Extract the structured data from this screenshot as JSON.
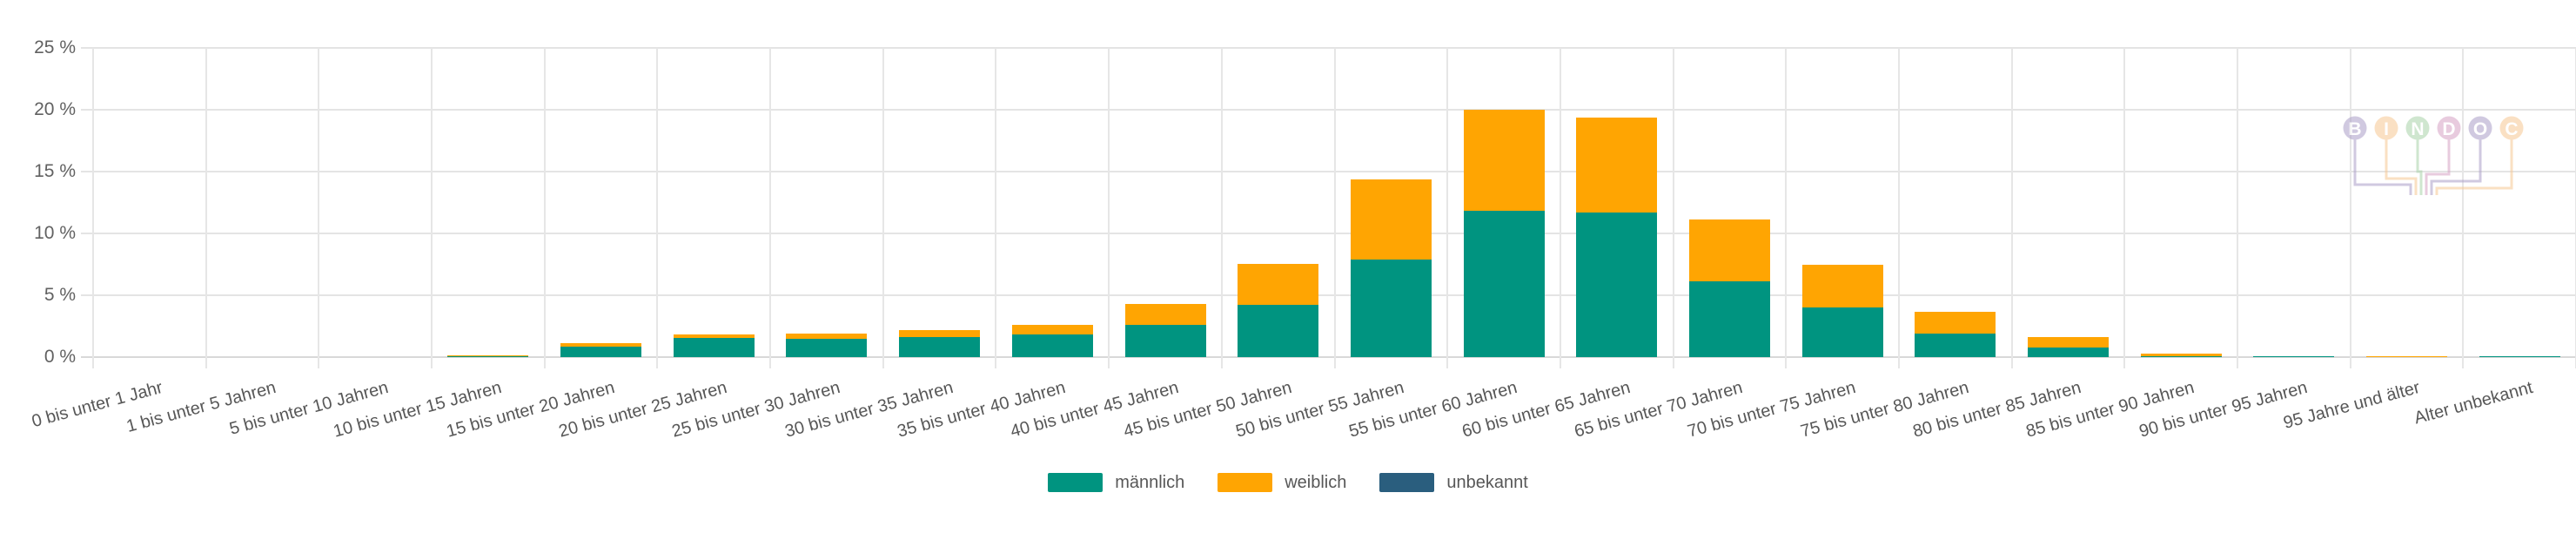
{
  "page": {
    "background": "#ffffff"
  },
  "watermark": {
    "name": "BINDOC",
    "letters": [
      {
        "char": "B",
        "color": "#ab9ec7"
      },
      {
        "char": "I",
        "color": "#f7c793"
      },
      {
        "char": "N",
        "color": "#a9d2a9"
      },
      {
        "char": "D",
        "color": "#d7a2c4"
      },
      {
        "char": "O",
        "color": "#ab9ec7"
      },
      {
        "char": "C",
        "color": "#f7c793"
      }
    ]
  },
  "chart_data": {
    "type": "bar",
    "stacked": true,
    "title": "",
    "xlabel": "",
    "ylabel": "",
    "unit": "%",
    "grid": true,
    "legend_position": "bottom",
    "x_label_rotation": -15,
    "ylim": [
      0,
      25
    ],
    "y_ticks": [
      {
        "value": 0,
        "label": "0 %"
      },
      {
        "value": 5,
        "label": "5 %"
      },
      {
        "value": 10,
        "label": "10 %"
      },
      {
        "value": 15,
        "label": "15 %"
      },
      {
        "value": 20,
        "label": "20 %"
      },
      {
        "value": 25,
        "label": "25 %"
      }
    ],
    "categories": [
      "0 bis unter 1 Jahr",
      "1 bis unter 5 Jahren",
      "5 bis unter 10 Jahren",
      "10 bis unter 15 Jahren",
      "15 bis unter 20 Jahren",
      "20 bis unter 25 Jahren",
      "25 bis unter 30 Jahren",
      "30 bis unter 35 Jahren",
      "35 bis unter 40 Jahren",
      "40 bis unter 45 Jahren",
      "45 bis unter 50 Jahren",
      "50 bis unter 55 Jahren",
      "55 bis unter 60 Jahren",
      "60 bis unter 65 Jahren",
      "65 bis unter 70 Jahren",
      "70 bis unter 75 Jahren",
      "75 bis unter 80 Jahren",
      "80 bis unter 85 Jahren",
      "85 bis unter 90 Jahren",
      "90 bis unter 95 Jahren",
      "95 Jahre und älter",
      "Alter unbekannt"
    ],
    "series": [
      {
        "name": "männlich",
        "color": "#009480",
        "values": [
          0,
          0,
          0,
          0.05,
          0.85,
          1.55,
          1.5,
          1.6,
          1.8,
          2.6,
          4.2,
          7.9,
          11.8,
          11.7,
          6.1,
          4.0,
          1.9,
          0.8,
          0.1,
          0.1,
          0,
          0.1
        ]
      },
      {
        "name": "weiblich",
        "color": "#FFA502",
        "values": [
          0,
          0,
          0,
          0.05,
          0.3,
          0.25,
          0.4,
          0.55,
          0.8,
          1.7,
          3.3,
          6.5,
          8.2,
          7.7,
          5.0,
          3.45,
          1.75,
          0.85,
          0.2,
          0,
          0.1,
          0
        ]
      },
      {
        "name": "unbekannt",
        "color": "#2A5E7E",
        "values": [
          0,
          0,
          0,
          0,
          0,
          0,
          0,
          0,
          0,
          0,
          0,
          0,
          0,
          0,
          0,
          0,
          0,
          0,
          0,
          0,
          0,
          0
        ]
      }
    ]
  }
}
